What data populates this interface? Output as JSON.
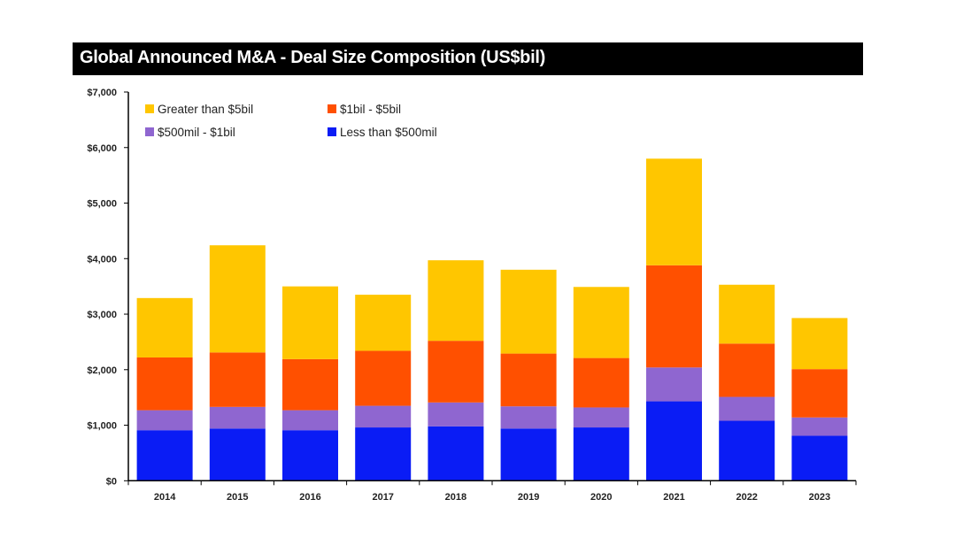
{
  "chart_data": {
    "type": "bar",
    "stacked": true,
    "title": "Global Announced M&A - Deal Size Composition (US$bil)",
    "xlabel": "",
    "ylabel": "",
    "categories": [
      "2014",
      "2015",
      "2016",
      "2017",
      "2018",
      "2019",
      "2020",
      "2021",
      "2022",
      "2023"
    ],
    "ylim": [
      0,
      7000
    ],
    "yticks": [
      0,
      1000,
      2000,
      3000,
      4000,
      5000,
      6000,
      7000
    ],
    "ytick_labels": [
      "$0",
      "$1,000",
      "$2,000",
      "$3,000",
      "$4,000",
      "$5,000",
      "$6,000",
      "$7,000"
    ],
    "grid": false,
    "legend_position": "top-left",
    "series": [
      {
        "name": "Less than $500mil",
        "color": "#0a1cf5",
        "values": [
          910,
          940,
          910,
          960,
          980,
          940,
          960,
          1430,
          1080,
          810
        ]
      },
      {
        "name": "$500mil - $1bil",
        "color": "#8f66d0",
        "values": [
          360,
          390,
          360,
          390,
          430,
          400,
          360,
          610,
          430,
          330
        ]
      },
      {
        "name": "$1bil - $5bil",
        "color": "#ff5000",
        "values": [
          950,
          980,
          920,
          990,
          1110,
          950,
          890,
          1840,
          960,
          870
        ]
      },
      {
        "name": "Greater than $5bil",
        "color": "#ffc600",
        "values": [
          1070,
          1930,
          1310,
          1010,
          1450,
          1510,
          1280,
          1920,
          1060,
          920
        ]
      }
    ],
    "legend_order": [
      3,
      2,
      1,
      0
    ]
  }
}
